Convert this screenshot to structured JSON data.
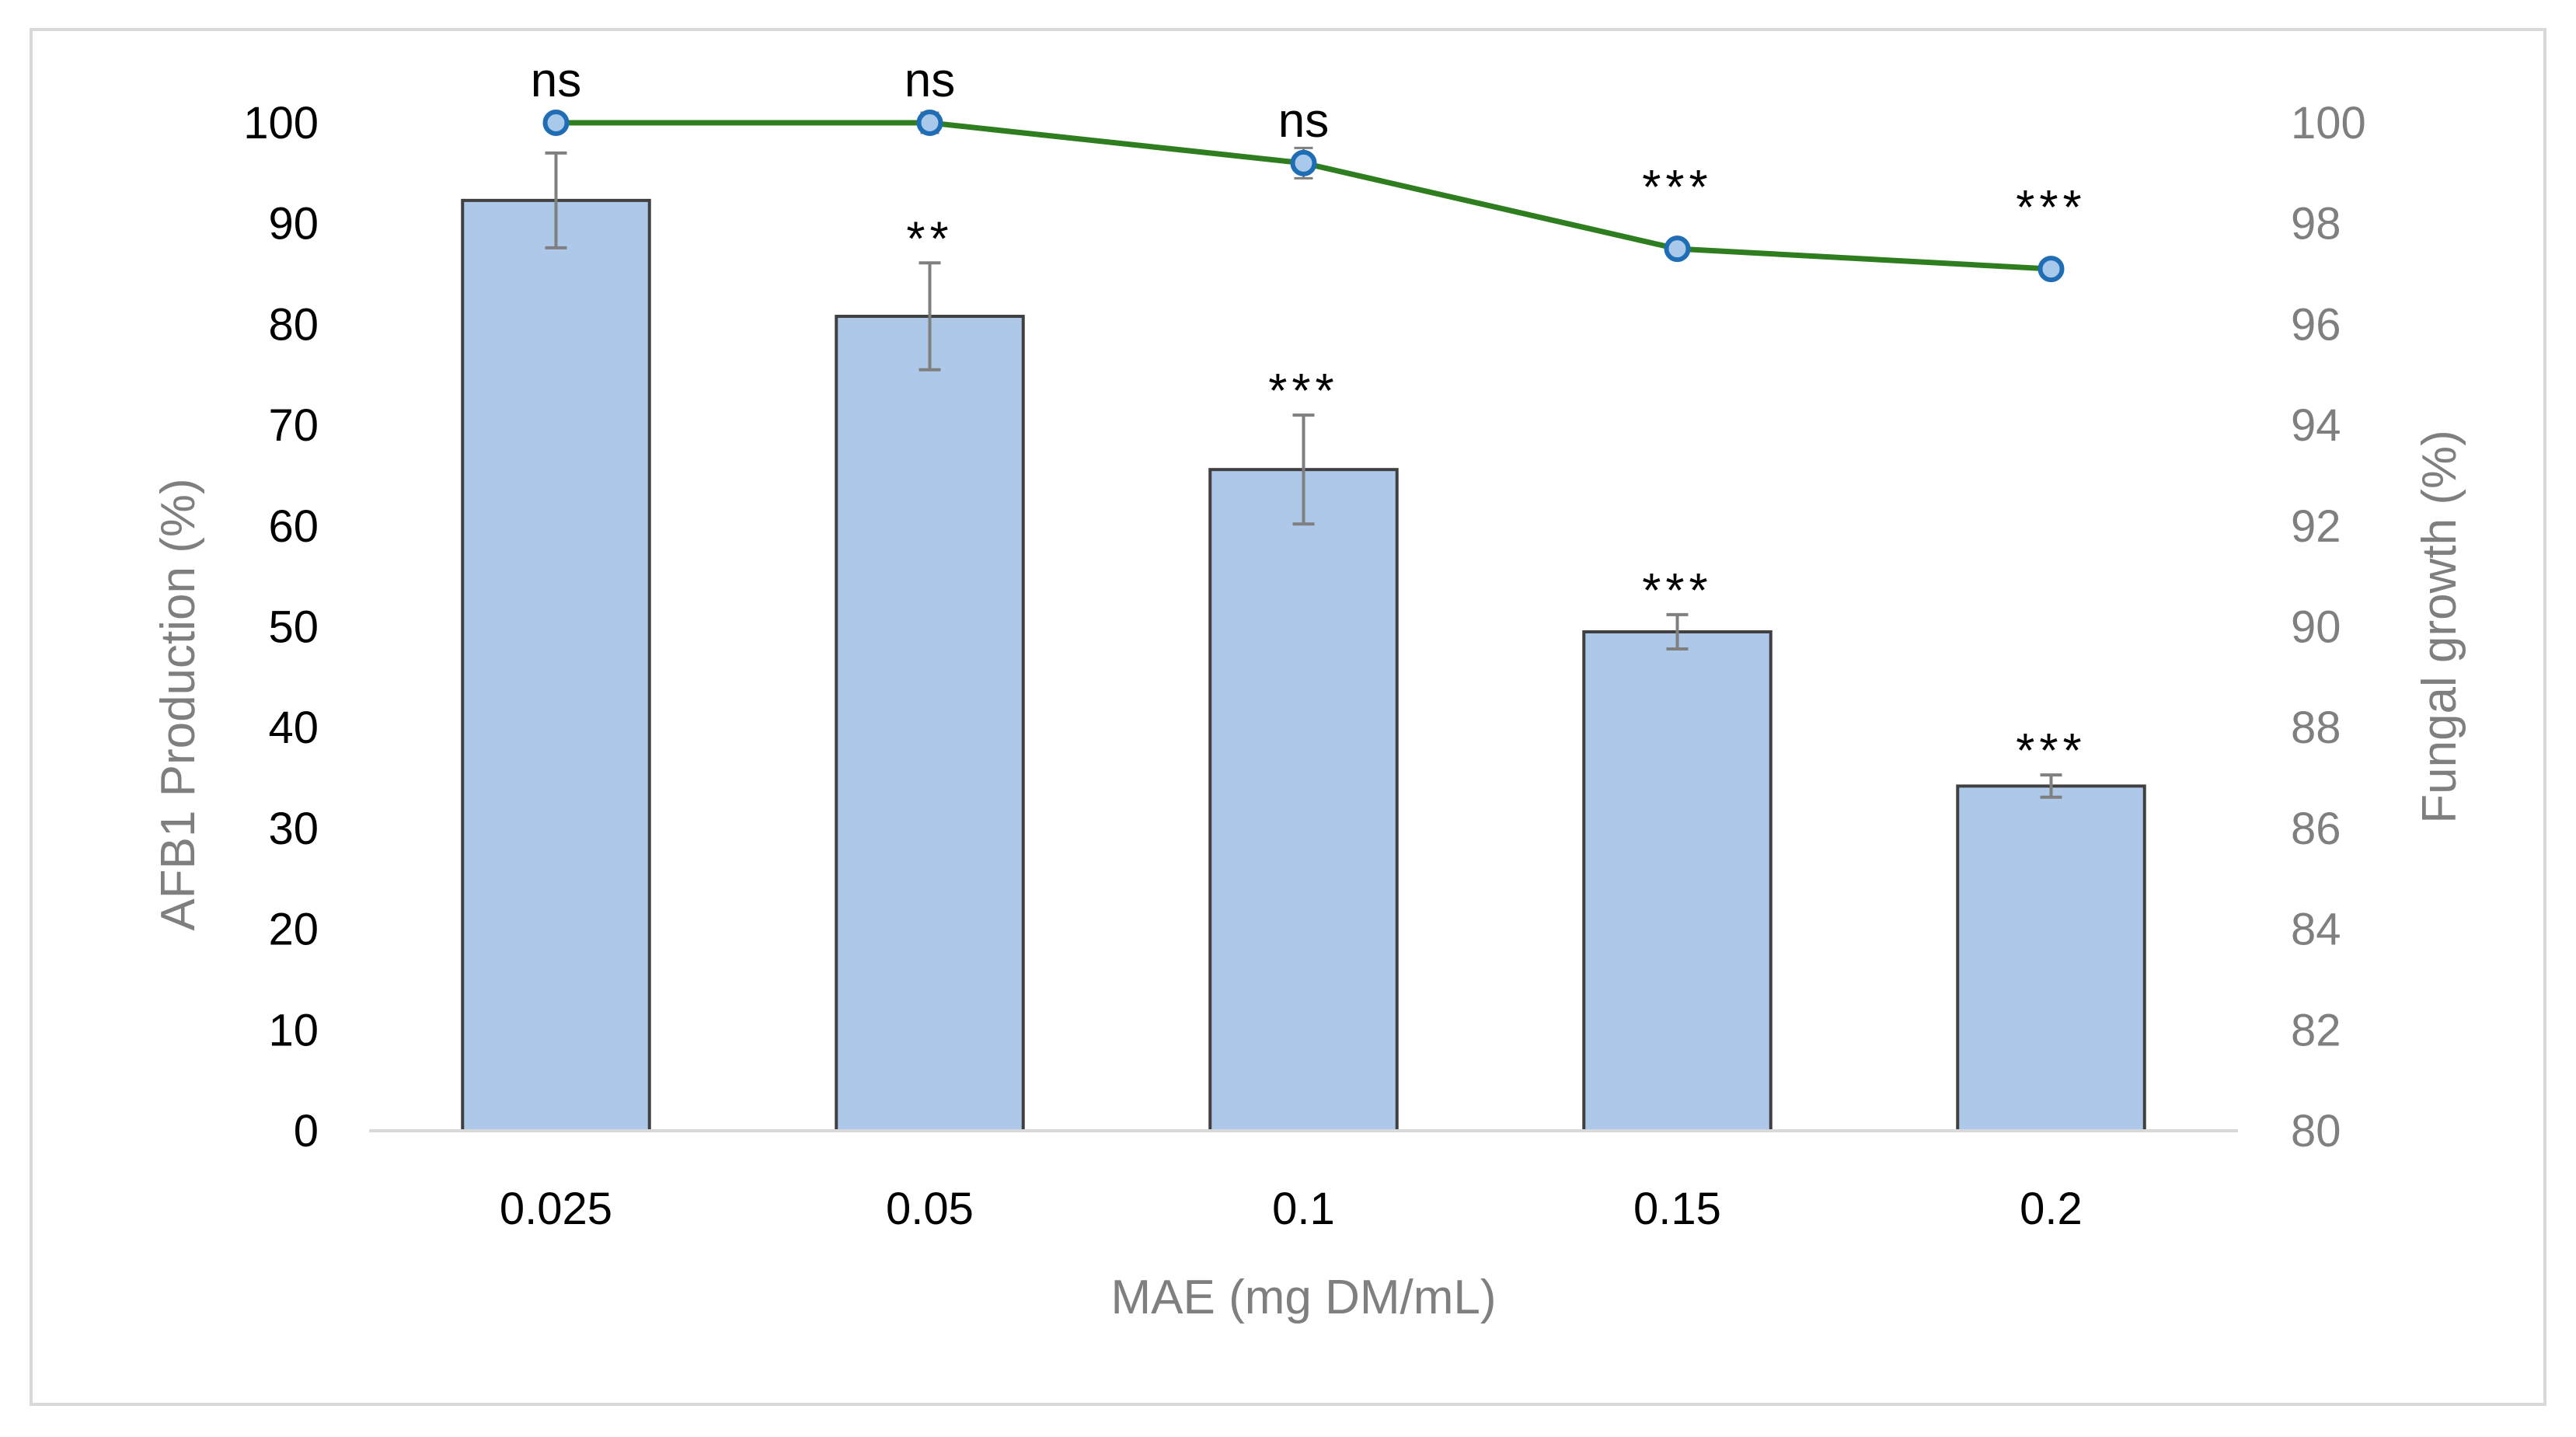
{
  "chart_data": {
    "type": "bar",
    "title": "",
    "xlabel": "MAE (mg DM/mL)",
    "ylabel": "AFB1 Production (%)",
    "y2label": "Fungal growth (%)",
    "categories": [
      "0.025",
      "0.05",
      "0.1",
      "0.15",
      "0.2"
    ],
    "ylim": [
      0,
      100
    ],
    "yticks": [
      "0",
      "10",
      "20",
      "30",
      "40",
      "50",
      "60",
      "70",
      "80",
      "90",
      "100"
    ],
    "y2lim": [
      80,
      100
    ],
    "y2ticks": [
      "80",
      "82",
      "84",
      "86",
      "88",
      "90",
      "92",
      "94",
      "96",
      "98",
      "100"
    ],
    "grid": false,
    "legend": "none",
    "series": [
      {
        "name": "AFB1 Production (%)",
        "kind": "bar",
        "axis": "left",
        "values": [
          92.3,
          80.8,
          65.6,
          49.5,
          34.2
        ],
        "errors": [
          4.7,
          5.3,
          5.4,
          1.7,
          1.1
        ],
        "color": "#aec8ea",
        "edge": "#404040",
        "annotations": [
          "",
          "**",
          "***",
          "***",
          "***"
        ]
      },
      {
        "name": "Fungal growth (%)",
        "kind": "line",
        "axis": "right",
        "values": [
          100.0,
          100.0,
          99.2,
          97.5,
          97.1
        ],
        "errors": [
          0,
          0.2,
          0.3,
          0.1,
          0.1
        ],
        "color": "#2e7d1e",
        "marker_fill": "#a9c9ea",
        "marker_edge": "#1f6db5",
        "annotations": [
          "ns",
          "ns",
          "ns",
          "***",
          "***"
        ]
      }
    ]
  }
}
